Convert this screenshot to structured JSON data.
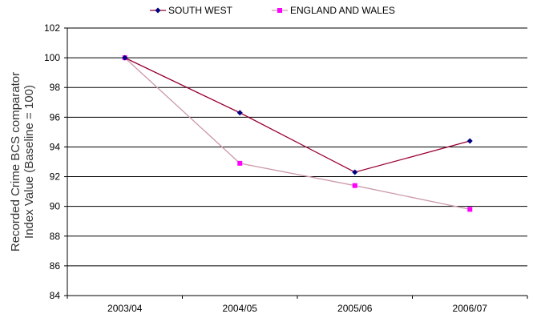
{
  "chart_data": {
    "type": "line",
    "categories": [
      "2003/04",
      "2004/05",
      "2005/06",
      "2006/07"
    ],
    "series": [
      {
        "name": "SOUTH WEST",
        "values": [
          100,
          96.3,
          92.3,
          94.4
        ],
        "color": "#990033",
        "marker_color": "#000080",
        "marker": "diamond"
      },
      {
        "name": "ENGLAND AND WALES",
        "values": [
          100,
          92.9,
          91.4,
          89.8
        ],
        "color": "#cc99aa",
        "marker_color": "#ff00ff",
        "marker": "square"
      }
    ],
    "ylabel_lines": [
      "Recorded Crime BCS comparator",
      "Index Value (Baseline = 100)"
    ],
    "xlabel": "",
    "title": "",
    "ylim": [
      84,
      102
    ],
    "yticks": [
      "84",
      "86",
      "88",
      "90",
      "92",
      "94",
      "96",
      "98",
      "100",
      "102"
    ],
    "grid": true,
    "legend_position": "top"
  }
}
